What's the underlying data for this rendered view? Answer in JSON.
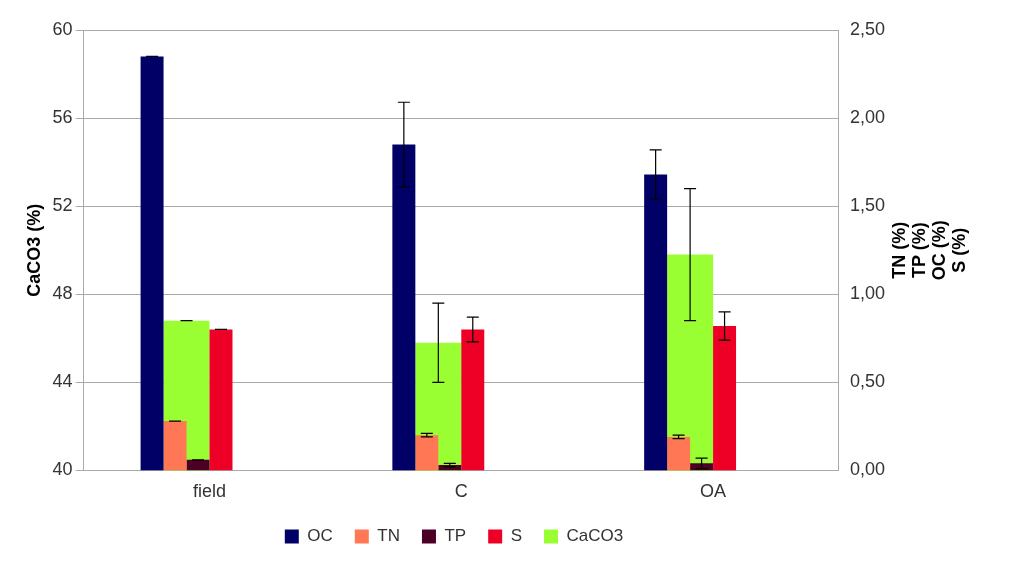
{
  "chart_data": {
    "type": "bar",
    "ylabel": "CaCO3 (%)",
    "y2label": "TN (%)\nTP (%)\nOC (%)\nS (%)",
    "categories": [
      "field",
      "C",
      "OA"
    ],
    "series": [
      {
        "name": "CaCO3",
        "color": "#99ff33",
        "values": [
          46.8,
          45.8,
          49.8
        ],
        "errors": [
          0,
          1.8,
          3.0
        ]
      },
      {
        "name": "OC",
        "color": "#000066",
        "axis": "y2",
        "values": [
          2.35,
          1.85,
          1.68
        ],
        "errors": [
          0,
          0.24,
          0.14
        ]
      },
      {
        "name": "TN",
        "color": "#ff7755",
        "axis": "y2",
        "values": [
          0.28,
          0.2,
          0.19
        ],
        "errors": [
          0,
          0.01,
          0.01
        ]
      },
      {
        "name": "TP",
        "color": "#4d0026",
        "axis": "y2",
        "values": [
          0.06,
          0.03,
          0.04
        ],
        "errors": [
          0,
          0.01,
          0.03
        ]
      },
      {
        "name": "S",
        "color": "#ee0026",
        "axis": "y2",
        "values": [
          0.8,
          0.8,
          0.82
        ],
        "errors": [
          0,
          0.07,
          0.08
        ]
      }
    ],
    "ylim": [
      40,
      60
    ],
    "yticks": [
      40,
      44,
      48,
      52,
      56,
      60
    ],
    "y2lim": [
      0,
      2.5
    ],
    "y2ticks": [
      {
        "value": 0,
        "label": "0,00"
      },
      {
        "value": 0.5,
        "label": "0,50"
      },
      {
        "value": 1,
        "label": "1,00"
      },
      {
        "value": 1.5,
        "label": "1,50"
      },
      {
        "value": 2,
        "label": "2,00"
      },
      {
        "value": 2.5,
        "label": "2,50"
      }
    ],
    "grid": "y",
    "legend": "bottom"
  }
}
